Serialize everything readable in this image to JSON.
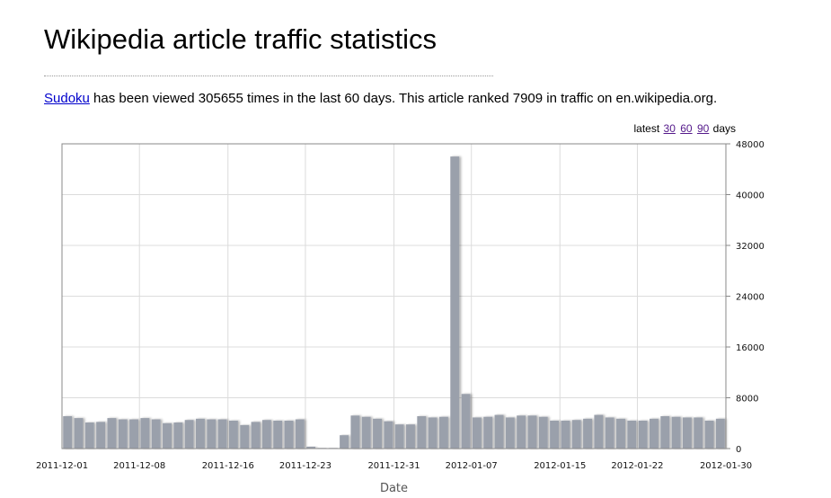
{
  "page": {
    "title": "Wikipedia article traffic statistics",
    "summary": {
      "article_link": "Sudoku",
      "text_before_count": " has been viewed ",
      "views": "305655",
      "text_after_count": " times in the last 60 days. This article ranked ",
      "rank": "7909",
      "text_after_rank": " in traffic on en.wikipedia.org."
    },
    "latest": {
      "prefix": "latest",
      "options": [
        "30",
        "60",
        "90"
      ],
      "suffix": "days"
    }
  },
  "chart_data": {
    "type": "bar",
    "title": "",
    "xlabel": "Date",
    "ylabel": "",
    "ylim": [
      0,
      48000
    ],
    "yticks": [
      0,
      8000,
      16000,
      24000,
      32000,
      40000,
      48000
    ],
    "xticks": [
      "2011-12-01",
      "2011-12-08",
      "2011-12-16",
      "2011-12-23",
      "2011-12-31",
      "2012-01-07",
      "2012-01-15",
      "2012-01-22",
      "2012-01-30"
    ],
    "grid": true,
    "bar_color": "#9aa0ab",
    "dates": [
      "2011-12-01",
      "2011-12-02",
      "2011-12-03",
      "2011-12-04",
      "2011-12-05",
      "2011-12-06",
      "2011-12-07",
      "2011-12-08",
      "2011-12-09",
      "2011-12-10",
      "2011-12-11",
      "2011-12-12",
      "2011-12-13",
      "2011-12-14",
      "2011-12-15",
      "2011-12-16",
      "2011-12-17",
      "2011-12-18",
      "2011-12-19",
      "2011-12-20",
      "2011-12-21",
      "2011-12-22",
      "2011-12-23",
      "2011-12-24",
      "2011-12-25",
      "2011-12-26",
      "2011-12-27",
      "2011-12-28",
      "2011-12-29",
      "2011-12-30",
      "2011-12-31",
      "2012-01-01",
      "2012-01-02",
      "2012-01-03",
      "2012-01-04",
      "2012-01-05",
      "2012-01-06",
      "2012-01-07",
      "2012-01-08",
      "2012-01-09",
      "2012-01-10",
      "2012-01-11",
      "2012-01-12",
      "2012-01-13",
      "2012-01-14",
      "2012-01-15",
      "2012-01-16",
      "2012-01-17",
      "2012-01-18",
      "2012-01-19",
      "2012-01-20",
      "2012-01-21",
      "2012-01-22",
      "2012-01-23",
      "2012-01-24",
      "2012-01-25",
      "2012-01-26",
      "2012-01-27",
      "2012-01-28",
      "2012-01-29"
    ],
    "values": [
      5100,
      4800,
      4100,
      4200,
      4800,
      4600,
      4600,
      4800,
      4600,
      4000,
      4100,
      4500,
      4700,
      4600,
      4600,
      4400,
      3700,
      4200,
      4500,
      4400,
      4400,
      4600,
      300,
      100,
      100,
      2100,
      5200,
      5000,
      4700,
      4300,
      3800,
      3800,
      5100,
      4900,
      5000,
      46000,
      8600,
      4900,
      5000,
      5300,
      4900,
      5200,
      5200,
      5000,
      4400,
      4400,
      4500,
      4700,
      5300,
      4900,
      4700,
      4400,
      4400,
      4700,
      5100,
      5000,
      4900,
      4900,
      4400,
      4700
    ]
  }
}
